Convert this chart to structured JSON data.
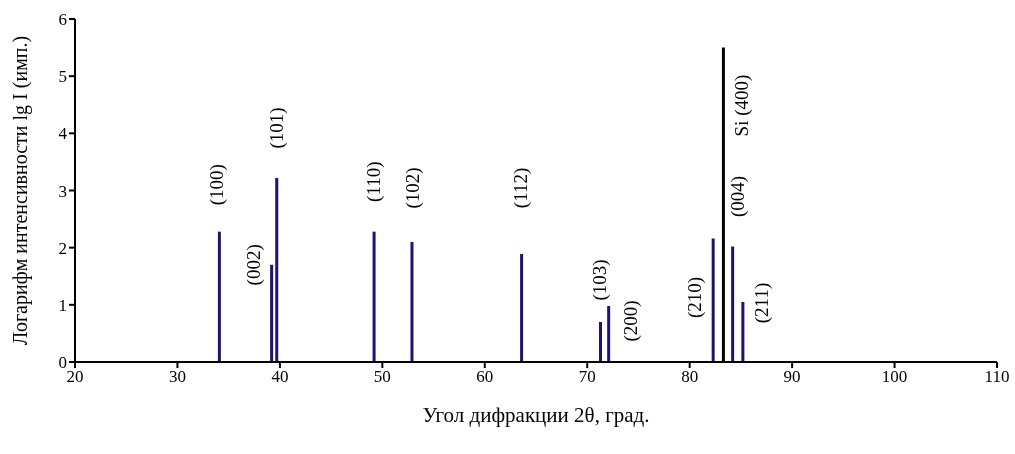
{
  "chart_data": {
    "type": "bar",
    "xlabel": "Угол дифракции 2θ, град.",
    "ylabel": "Логарифм интенсивности lg I (имп.)",
    "x": [
      34.1,
      39.2,
      39.7,
      49.2,
      52.9,
      63.6,
      71.3,
      72.1,
      82.3,
      83.3,
      84.2,
      85.2
    ],
    "values": [
      2.28,
      1.7,
      3.22,
      2.28,
      2.1,
      1.89,
      0.7,
      0.98,
      2.16,
      5.5,
      2.02,
      1.05
    ],
    "colors": [
      "#1f0f80",
      "#1f0f80",
      "#1f0f80",
      "#1f0f80",
      "#1f0f80",
      "#1f0f80",
      "#1f0f80",
      "#1f0f80",
      "#1f0f80",
      "#000000",
      "#1f0f80",
      "#1f0f80"
    ],
    "xlim": [
      20,
      110
    ],
    "xticks": [
      20,
      30,
      40,
      50,
      60,
      70,
      80,
      90,
      100,
      110
    ],
    "ylim": [
      0,
      6
    ],
    "yticks": [
      0,
      1,
      2,
      3,
      4,
      5,
      6
    ],
    "annotations": [
      {
        "text": "(100)",
        "x": 34.1,
        "y": 2.28
      },
      {
        "text": "(002)",
        "x": 39.2,
        "y": 1.7
      },
      {
        "text": "(101)",
        "x": 39.7,
        "y": 3.22
      },
      {
        "text": "(110)",
        "x": 49.2,
        "y": 2.28
      },
      {
        "text": "(102)",
        "x": 52.9,
        "y": 2.1
      },
      {
        "text": "(112)",
        "x": 63.6,
        "y": 1.89
      },
      {
        "text": "(103)",
        "x": 71.3,
        "y": 0.7
      },
      {
        "text": "(200)",
        "x": 72.1,
        "y": 0.98
      },
      {
        "text": "(210)",
        "x": 82.3,
        "y": 2.16
      },
      {
        "text": "Si (400)",
        "x": 83.3,
        "y": 5.5
      },
      {
        "text": "(004)",
        "x": 84.2,
        "y": 2.02
      },
      {
        "text": "(211)",
        "x": 85.2,
        "y": 1.05
      }
    ]
  }
}
